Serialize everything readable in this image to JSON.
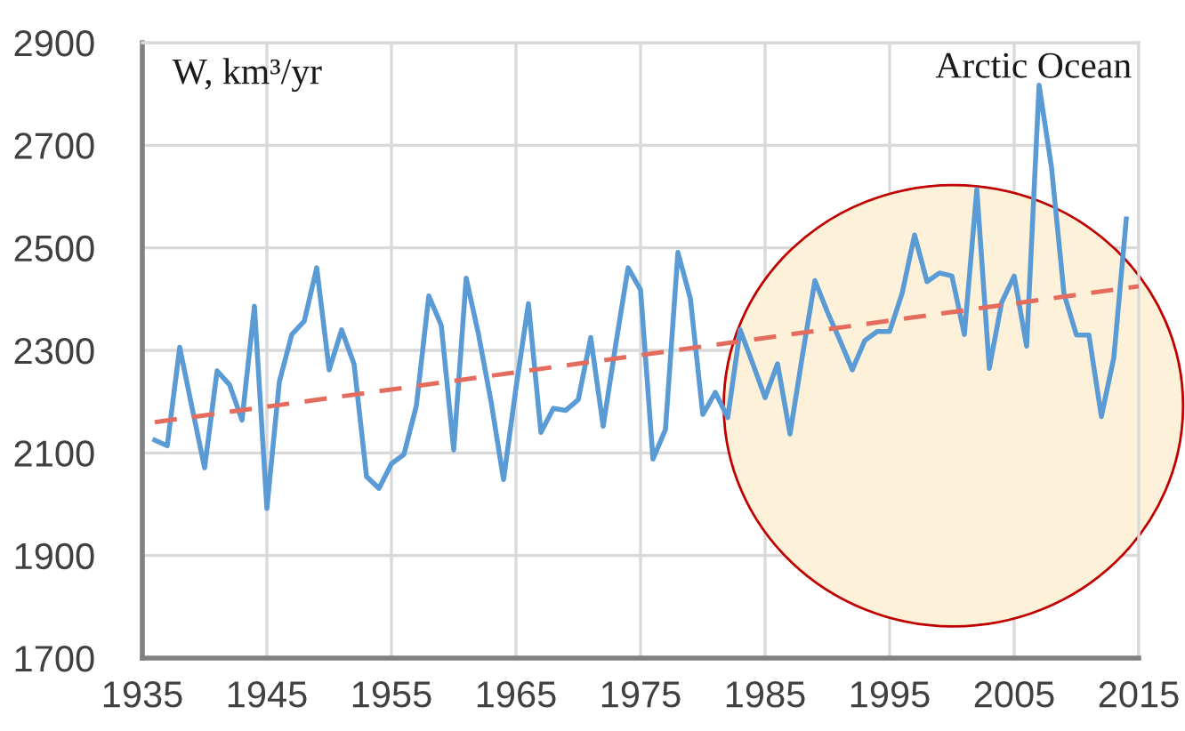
{
  "chart_data": {
    "type": "line",
    "title": "Arctic Ocean",
    "ylabel": "W, km³/yr",
    "x": [
      1936,
      1937,
      1938,
      1939,
      1940,
      1941,
      1942,
      1943,
      1944,
      1945,
      1946,
      1947,
      1948,
      1949,
      1950,
      1951,
      1952,
      1953,
      1954,
      1955,
      1956,
      1957,
      1958,
      1959,
      1960,
      1961,
      1962,
      1963,
      1964,
      1965,
      1966,
      1967,
      1968,
      1969,
      1970,
      1971,
      1972,
      1973,
      1974,
      1975,
      1976,
      1977,
      1978,
      1979,
      1980,
      1981,
      1982,
      1983,
      1984,
      1985,
      1986,
      1987,
      1988,
      1989,
      1990,
      1991,
      1992,
      1993,
      1994,
      1995,
      1996,
      1997,
      1998,
      1999,
      2000,
      2001,
      2002,
      2003,
      2004,
      2005,
      2006,
      2007,
      2008,
      2009,
      2010,
      2011,
      2012,
      2013,
      2014
    ],
    "series": [
      {
        "color": "#5b9bd5",
        "line_style": "solid",
        "values": [
          2125,
          2114,
          2306,
          2187,
          2071,
          2260,
          2233,
          2164,
          2386,
          1992,
          2239,
          2331,
          2357,
          2461,
          2262,
          2340,
          2273,
          2054,
          2031,
          2079,
          2097,
          2192,
          2406,
          2349,
          2106,
          2441,
          2330,
          2200,
          2048,
          2227,
          2391,
          2140,
          2187,
          2183,
          2204,
          2325,
          2152,
          2310,
          2461,
          2418,
          2088,
          2146,
          2491,
          2401,
          2175,
          2218,
          2169,
          2340,
          2275,
          2208,
          2274,
          2137,
          2290,
          2436,
          2375,
          2320,
          2262,
          2319,
          2337,
          2337,
          2411,
          2525,
          2434,
          2451,
          2445,
          2331,
          2614,
          2265,
          2394,
          2445,
          2308,
          2817,
          2656,
          2410,
          2330,
          2330,
          2171,
          2286,
          2556
        ]
      },
      {
        "type": "line",
        "color": "#e46c5e",
        "line_style": "dashed",
        "x": [
          1936,
          2015
        ],
        "values": [
          2160,
          2425
        ]
      }
    ],
    "xlim": [
      1935,
      2015
    ],
    "ylim": [
      1700,
      2900
    ],
    "xticks": [
      1935,
      1945,
      1955,
      1965,
      1975,
      1985,
      1995,
      2005,
      2015
    ],
    "yticks": [
      1700,
      1900,
      2100,
      2300,
      2500,
      2700,
      2900
    ],
    "grid": true
  }
}
